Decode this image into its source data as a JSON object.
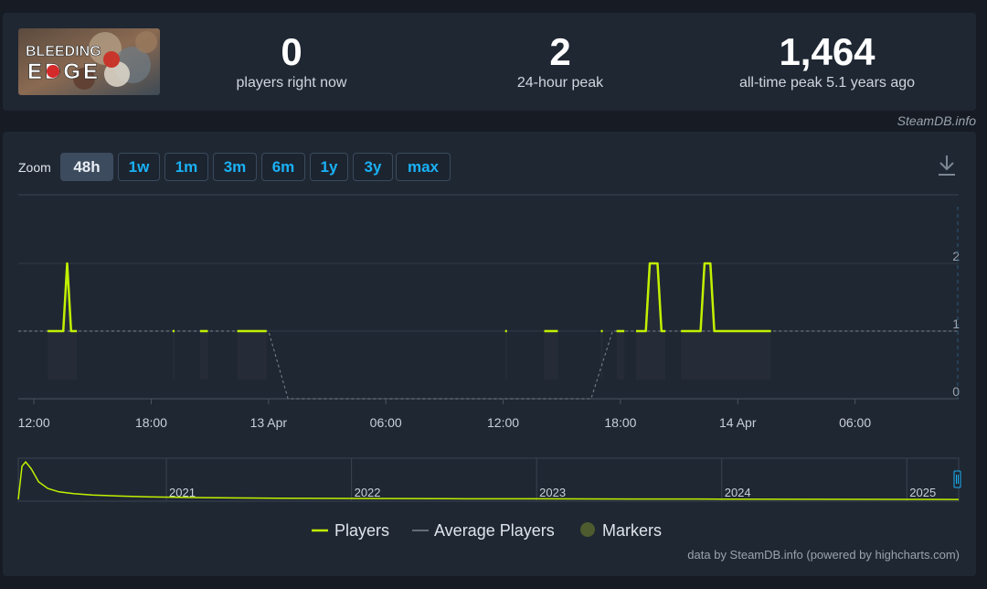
{
  "stats": {
    "current": {
      "value": "0",
      "label": "players right now"
    },
    "peak24h": {
      "value": "2",
      "label": "24-hour peak"
    },
    "alltime": {
      "value": "1,464",
      "label": "all-time peak 5.1 years ago"
    }
  },
  "game": {
    "logo_line1": "BLEEDING",
    "logo_line2": "EDGE"
  },
  "credit_top": "SteamDB.info",
  "zoom": {
    "label": "Zoom",
    "buttons": [
      "48h",
      "1w",
      "1m",
      "3m",
      "6m",
      "1y",
      "3y",
      "max"
    ],
    "active": "48h"
  },
  "legend": {
    "players": "Players",
    "average": "Average Players",
    "markers": "Markers"
  },
  "credit_bottom": "data by SteamDB.info (powered by highcharts.com)",
  "colors": {
    "players": "#c2f000",
    "average": "#7d8590",
    "markers": "#4d5b2e",
    "accent": "#1ab1f5"
  },
  "chart_data": {
    "type": "line",
    "x_unit": "hours from 12 Apr 12:00",
    "ylim": [
      0,
      2.5
    ],
    "yticks": [
      0,
      1,
      2
    ],
    "xticks": [
      {
        "x": 0,
        "label": "12:00"
      },
      {
        "x": 6,
        "label": "18:00"
      },
      {
        "x": 12,
        "label": "13 Apr"
      },
      {
        "x": 18,
        "label": "06:00"
      },
      {
        "x": 24,
        "label": "12:00"
      },
      {
        "x": 30,
        "label": "18:00"
      },
      {
        "x": 36,
        "label": "14 Apr"
      },
      {
        "x": 42,
        "label": "06:00"
      }
    ],
    "xlim": [
      -0.8,
      47.3
    ],
    "series": [
      {
        "name": "Players",
        "segments": [
          [
            [
              0.7,
              1
            ],
            [
              1.5,
              1
            ],
            [
              1.7,
              2
            ],
            [
              1.9,
              1
            ],
            [
              2.2,
              1
            ]
          ],
          [
            [
              7.1,
              1
            ],
            [
              7.2,
              1
            ]
          ],
          [
            [
              8.5,
              1
            ],
            [
              8.9,
              1
            ]
          ],
          [
            [
              10.4,
              1
            ],
            [
              11.9,
              1
            ]
          ],
          [
            [
              24.1,
              1
            ],
            [
              24.2,
              1
            ]
          ],
          [
            [
              26.1,
              1
            ],
            [
              26.8,
              1
            ]
          ],
          [
            [
              29.0,
              1
            ],
            [
              29.1,
              1
            ]
          ],
          [
            [
              29.8,
              1
            ],
            [
              30.2,
              1
            ]
          ],
          [
            [
              30.8,
              1
            ],
            [
              31.3,
              1
            ],
            [
              31.5,
              2
            ],
            [
              31.9,
              2
            ],
            [
              32.1,
              1
            ],
            [
              32.3,
              1
            ]
          ],
          [
            [
              33.1,
              1
            ],
            [
              34.1,
              1
            ],
            [
              34.3,
              2
            ],
            [
              34.6,
              2
            ],
            [
              34.8,
              1
            ],
            [
              37.7,
              1
            ]
          ]
        ]
      },
      {
        "name": "Average Players",
        "points": [
          [
            -0.8,
            1
          ],
          [
            12.0,
            1
          ],
          [
            13.0,
            0
          ],
          [
            28.5,
            0
          ],
          [
            29.6,
            1
          ],
          [
            47.3,
            1
          ]
        ]
      }
    ],
    "navigator": {
      "ticks": [
        {
          "x": 2021,
          "label": "2021"
        },
        {
          "x": 2022,
          "label": "2022"
        },
        {
          "x": 2023,
          "label": "2023"
        },
        {
          "x": 2024,
          "label": "2024"
        },
        {
          "x": 2025,
          "label": "2025"
        }
      ],
      "xlim": [
        2020.2,
        2025.28
      ],
      "ymax": 1464,
      "points": [
        [
          2020.2,
          40
        ],
        [
          2020.22,
          1300
        ],
        [
          2020.24,
          1464
        ],
        [
          2020.27,
          1200
        ],
        [
          2020.31,
          700
        ],
        [
          2020.36,
          450
        ],
        [
          2020.42,
          320
        ],
        [
          2020.5,
          250
        ],
        [
          2020.6,
          200
        ],
        [
          2020.75,
          160
        ],
        [
          2020.9,
          130
        ],
        [
          2021.2,
          100
        ],
        [
          2021.6,
          80
        ],
        [
          2022.0,
          70
        ],
        [
          2022.5,
          60
        ],
        [
          2023.0,
          55
        ],
        [
          2023.5,
          50
        ],
        [
          2024.0,
          45
        ],
        [
          2024.5,
          40
        ],
        [
          2025.0,
          35
        ],
        [
          2025.28,
          30
        ]
      ]
    }
  }
}
